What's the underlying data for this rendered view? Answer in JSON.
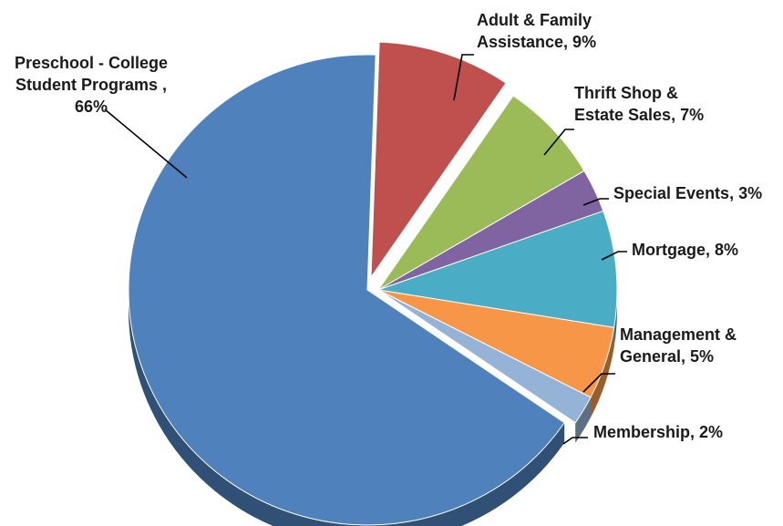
{
  "chart_data": {
    "type": "pie",
    "style": "3d-exploded",
    "slices": [
      {
        "label_lines": [
          "Adult & Family",
          "Assistance, 9%"
        ],
        "name": "Adult & Family Assistance",
        "value": 9,
        "color": "#c0504d"
      },
      {
        "label_lines": [
          "Thrift Shop &",
          "Estate Sales, 7%"
        ],
        "name": "Thrift Shop & Estate Sales",
        "value": 7,
        "color": "#9bbb59"
      },
      {
        "label_lines": [
          "Special Events, 3%"
        ],
        "name": "Special Events",
        "value": 3,
        "color": "#8064a2"
      },
      {
        "label_lines": [
          "Mortgage, 8%"
        ],
        "name": "Mortgage",
        "value": 8,
        "color": "#4bacc6"
      },
      {
        "label_lines": [
          "Management &",
          "General, 5%"
        ],
        "name": "Management & General",
        "value": 5,
        "color": "#f79646"
      },
      {
        "label_lines": [
          "Membership, 2%"
        ],
        "name": "Membership",
        "value": 2,
        "color": "#95b3d7"
      },
      {
        "label_lines": [
          "Preschool - College",
          "Student Programs ,",
          "66%"
        ],
        "name": "Preschool - College Student Programs",
        "value": 66,
        "color": "#4f81bd"
      }
    ]
  }
}
